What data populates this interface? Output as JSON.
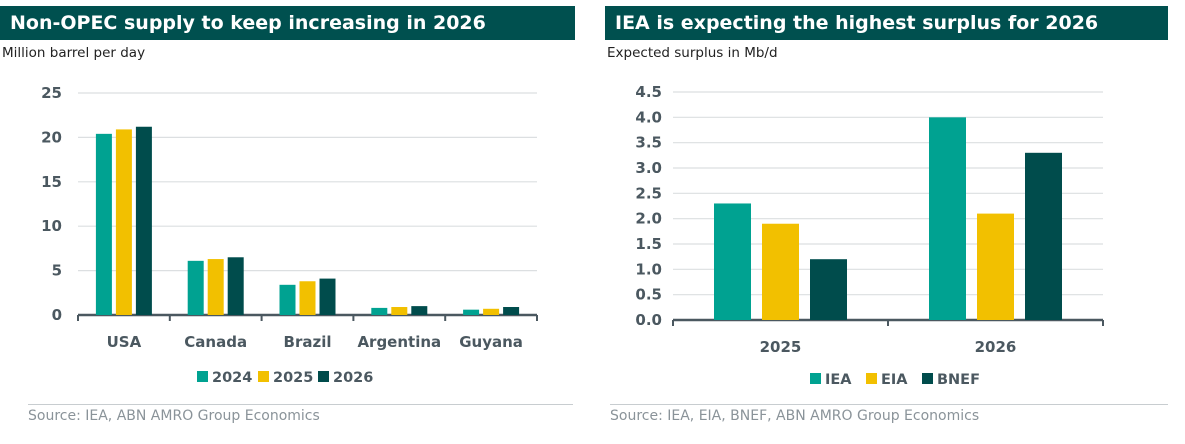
{
  "colors": {
    "header": "#00504f",
    "s1": "#00a291",
    "s2": "#f2c000",
    "s3": "#004c4c"
  },
  "chart_data": [
    {
      "type": "bar",
      "title": "Non-OPEC supply to keep increasing in 2026",
      "ylabel": "Million barrel per day",
      "source": "Source: IEA, ABN AMRO Group Economics",
      "categories": [
        "USA",
        "Canada",
        "Brazil",
        "Argentina",
        "Guyana"
      ],
      "series": [
        {
          "name": "2024",
          "values": [
            20.4,
            6.1,
            3.4,
            0.8,
            0.6
          ]
        },
        {
          "name": "2025",
          "values": [
            20.9,
            6.3,
            3.8,
            0.9,
            0.7
          ]
        },
        {
          "name": "2026",
          "values": [
            21.2,
            6.5,
            4.1,
            1.0,
            0.9
          ]
        }
      ],
      "ylim": [
        0,
        25
      ],
      "yticks": [
        "0",
        "5",
        "10",
        "15",
        "20",
        "25"
      ],
      "grid": true,
      "legend": "bottom"
    },
    {
      "type": "bar",
      "title": "IEA is expecting the highest surplus for 2026",
      "ylabel": "Expected surplus in Mb/d",
      "source": "Source: IEA, EIA, BNEF, ABN AMRO Group Economics",
      "categories": [
        "2025",
        "2026"
      ],
      "series": [
        {
          "name": "IEA",
          "values": [
            2.3,
            4.0
          ]
        },
        {
          "name": "EIA",
          "values": [
            1.9,
            2.1
          ]
        },
        {
          "name": "BNEF",
          "values": [
            1.2,
            3.3
          ]
        }
      ],
      "ylim": [
        0,
        4.5
      ],
      "yticks": [
        "0.0",
        "0.5",
        "1.0",
        "1.5",
        "2.0",
        "2.5",
        "3.0",
        "3.5",
        "4.0",
        "4.5"
      ],
      "grid": true,
      "legend": "bottom"
    }
  ]
}
